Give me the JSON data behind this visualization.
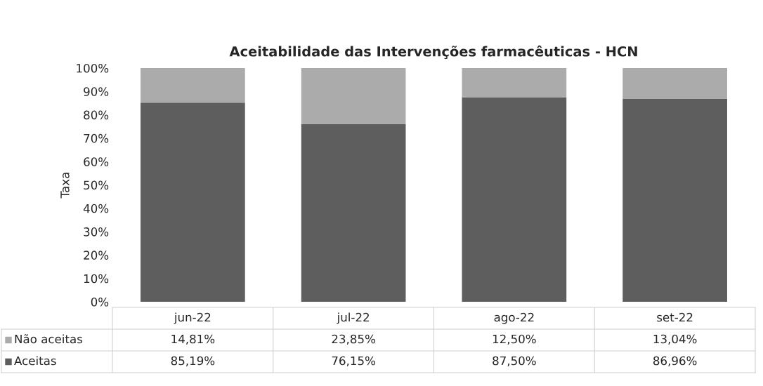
{
  "chart_data": {
    "type": "bar",
    "title": "Aceitabilidade das Intervenções farmacêuticas - HCN",
    "ylabel": "Taxa",
    "categories": [
      "jun-22",
      "jul-22",
      "ago-22",
      "set-22"
    ],
    "stacked": true,
    "legend": "bottom",
    "series": [
      {
        "name": "Aceitas",
        "color": "#5e5e5e",
        "values": [
          85.19,
          76.15,
          87.5,
          86.96
        ],
        "value_labels": [
          "85,19%",
          "76,15%",
          "87,50%",
          "86,96%"
        ]
      },
      {
        "name": "Não aceitas",
        "color": "#ababab",
        "values": [
          14.81,
          23.85,
          12.5,
          13.04
        ],
        "value_labels": [
          "14,81%",
          "23,85%",
          "12,50%",
          "13,04%"
        ]
      }
    ],
    "ylim": [
      0,
      100
    ],
    "yticks": [
      {
        "value": 0,
        "label": "0%"
      },
      {
        "value": 10,
        "label": "10%"
      },
      {
        "value": 20,
        "label": "20%"
      },
      {
        "value": 30,
        "label": "30%"
      },
      {
        "value": 40,
        "label": "40%"
      },
      {
        "value": 50,
        "label": "50%"
      },
      {
        "value": 60,
        "label": "60%"
      },
      {
        "value": 70,
        "label": "70%"
      },
      {
        "value": 80,
        "label": "80%"
      },
      {
        "value": 90,
        "label": "90%"
      },
      {
        "value": 100,
        "label": "100%"
      }
    ]
  }
}
